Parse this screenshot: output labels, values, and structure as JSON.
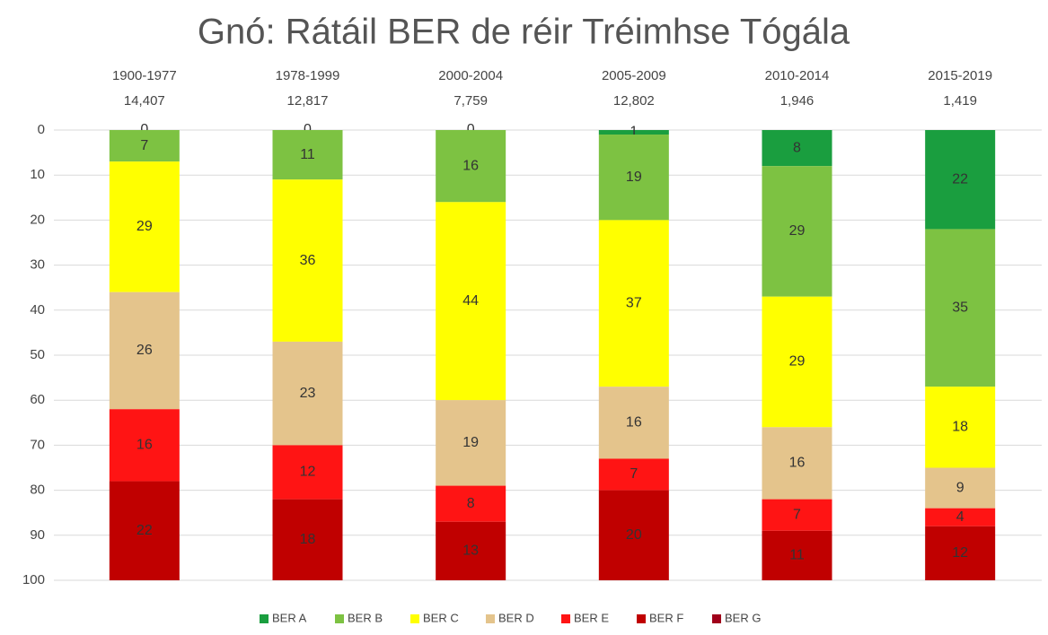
{
  "chart_data": {
    "type": "stacked_bar",
    "title": "Gnó: Rátáil BER de réir Tréimhse Tógála",
    "categories": [
      "1900-1977",
      "1978-1999",
      "2000-2004",
      "2005-2009",
      "2010-2014",
      "2015-2019"
    ],
    "category_counts": [
      "14,407",
      "12,817",
      "7,759",
      "12,802",
      "1,946",
      "1,419"
    ],
    "series": [
      {
        "name": "BER A",
        "color": "#1a9e3f",
        "values": [
          0,
          0,
          0,
          1,
          8,
          22
        ]
      },
      {
        "name": "BER B",
        "color": "#7dc242",
        "values": [
          7,
          11,
          16,
          19,
          29,
          35
        ]
      },
      {
        "name": "BER C",
        "color": "#ffff00",
        "values": [
          29,
          36,
          44,
          37,
          29,
          18
        ]
      },
      {
        "name": "BER D",
        "color": "#e4c48c",
        "values": [
          26,
          23,
          19,
          16,
          16,
          9
        ]
      },
      {
        "name": "BER E",
        "color": "#ff1414",
        "values": [
          16,
          12,
          8,
          7,
          7,
          4
        ]
      },
      {
        "name": "BER F",
        "color": "#c00000",
        "values": [
          22,
          18,
          13,
          20,
          11,
          12
        ]
      },
      {
        "name": "BER G",
        "color": "#a0001a",
        "values": [
          null,
          null,
          null,
          null,
          null,
          null
        ]
      }
    ],
    "ylim": [
      0,
      100
    ],
    "y_inverted": true,
    "yticks": [
      0,
      10,
      20,
      30,
      40,
      50,
      60,
      70,
      80,
      90,
      100
    ],
    "grid": true,
    "legend": "bottom"
  }
}
